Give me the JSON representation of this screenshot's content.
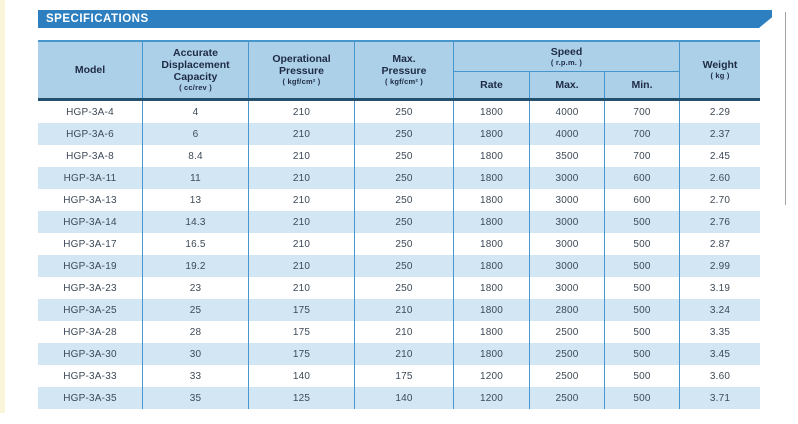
{
  "banner": {
    "title": "SPECIFICATIONS"
  },
  "table": {
    "header": {
      "model": "Model",
      "capacity": {
        "lines": [
          "Accurate",
          "Displacement",
          "Capacity"
        ],
        "unit": "( cc/rev )"
      },
      "op_pressure": {
        "lines": [
          "Operational",
          "Pressure"
        ],
        "unit": "( kgf/cm² )"
      },
      "max_pressure": {
        "lines": [
          "Max.",
          "Pressure"
        ],
        "unit": "( kgf/cm² )"
      },
      "speed": {
        "label": "Speed",
        "unit": "( r.p.m. )",
        "sub": [
          "Rate",
          "Max.",
          "Min."
        ]
      },
      "weight": {
        "label": "Weight",
        "unit": "( kg )"
      }
    },
    "rows": [
      [
        "HGP-3A-4",
        "4",
        "210",
        "250",
        "1800",
        "4000",
        "700",
        "2.29"
      ],
      [
        "HGP-3A-6",
        "6",
        "210",
        "250",
        "1800",
        "4000",
        "700",
        "2.37"
      ],
      [
        "HGP-3A-8",
        "8.4",
        "210",
        "250",
        "1800",
        "3500",
        "700",
        "2.45"
      ],
      [
        "HGP-3A-11",
        "11",
        "210",
        "250",
        "1800",
        "3000",
        "600",
        "2.60"
      ],
      [
        "HGP-3A-13",
        "13",
        "210",
        "250",
        "1800",
        "3000",
        "600",
        "2.70"
      ],
      [
        "HGP-3A-14",
        "14.3",
        "210",
        "250",
        "1800",
        "3000",
        "500",
        "2.76"
      ],
      [
        "HGP-3A-17",
        "16.5",
        "210",
        "250",
        "1800",
        "3000",
        "500",
        "2.87"
      ],
      [
        "HGP-3A-19",
        "19.2",
        "210",
        "250",
        "1800",
        "3000",
        "500",
        "2.99"
      ],
      [
        "HGP-3A-23",
        "23",
        "210",
        "250",
        "1800",
        "3000",
        "500",
        "3.19"
      ],
      [
        "HGP-3A-25",
        "25",
        "175",
        "210",
        "1800",
        "2800",
        "500",
        "3.24"
      ],
      [
        "HGP-3A-28",
        "28",
        "175",
        "210",
        "1800",
        "2500",
        "500",
        "3.35"
      ],
      [
        "HGP-3A-30",
        "30",
        "175",
        "210",
        "1800",
        "2500",
        "500",
        "3.45"
      ],
      [
        "HGP-3A-33",
        "33",
        "140",
        "175",
        "1200",
        "2500",
        "500",
        "3.60"
      ],
      [
        "HGP-3A-35",
        "35",
        "125",
        "140",
        "1200",
        "2500",
        "500",
        "3.71"
      ]
    ]
  },
  "colors": {
    "banner": "#2E7FC0",
    "header_bg": "#ABD0E8",
    "stripe": "#D2E6F4",
    "grid_line": "#4796CE",
    "header_top_line": "#4796CE",
    "header_bottom_line": "#24506F",
    "header_text": "#1F2B45",
    "cell_text": "#3E4A57",
    "left_strip": "#FAF5D8",
    "edge_line": "#9FA3A7"
  }
}
